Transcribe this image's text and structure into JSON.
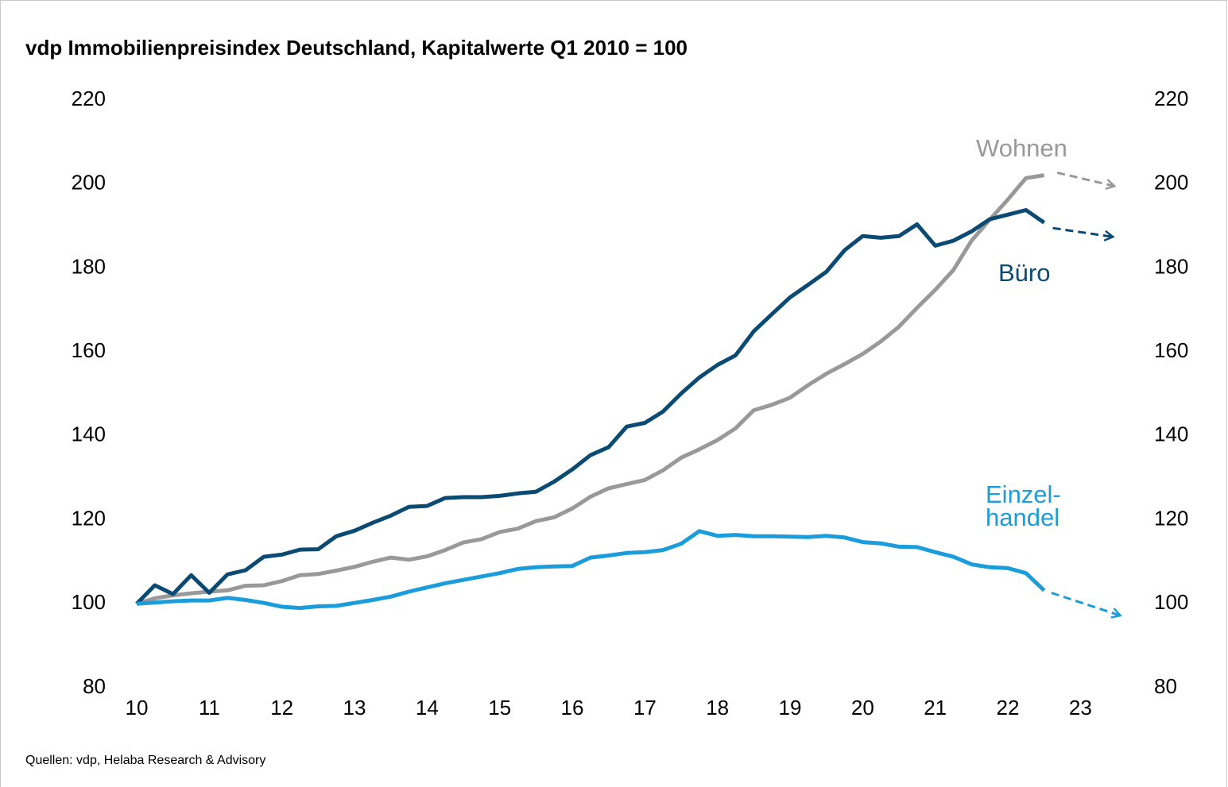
{
  "chart_data": {
    "type": "line",
    "title": "vdp Immobilienpreisindex Deutschland, Kapitalwerte Q1 2010 = 100",
    "source": "Quellen: vdp, Helaba Research & Advisory",
    "x": [
      10,
      10.25,
      10.5,
      10.75,
      11,
      11.25,
      11.5,
      11.75,
      12,
      12.25,
      12.5,
      12.75,
      13,
      13.25,
      13.5,
      13.75,
      14,
      14.25,
      14.5,
      14.75,
      15,
      15.25,
      15.5,
      15.75,
      16,
      16.25,
      16.5,
      16.75,
      17,
      17.25,
      17.5,
      17.75,
      18,
      18.25,
      18.5,
      18.75,
      19,
      19.25,
      19.5,
      19.75,
      20,
      20.25,
      20.5,
      20.75,
      21,
      21.25,
      21.5,
      21.75,
      22,
      22.25,
      22.5
    ],
    "xlim": [
      10,
      23.5
    ],
    "xticks": [
      10,
      11,
      12,
      13,
      14,
      15,
      16,
      17,
      18,
      19,
      20,
      21,
      22,
      23
    ],
    "ylim": [
      80,
      220
    ],
    "yticks": [
      80,
      100,
      120,
      140,
      160,
      180,
      200,
      220
    ],
    "y2lim": [
      80,
      220
    ],
    "y2ticks": [
      80,
      100,
      120,
      140,
      160,
      180,
      200,
      220
    ],
    "grid": false,
    "series": [
      {
        "name": "Wohnen",
        "color": "#999999",
        "values": [
          100,
          101.3,
          102,
          102.5,
          102.9,
          103.2,
          104.3,
          104.4,
          105.4,
          106.8,
          107.1,
          107.9,
          108.8,
          110,
          111,
          110.5,
          111.3,
          112.8,
          114.6,
          115.4,
          117.1,
          117.9,
          119.7,
          120.6,
          122.7,
          125.5,
          127.5,
          128.5,
          129.5,
          131.8,
          134.8,
          136.8,
          139,
          141.8,
          146.1,
          147.4,
          149.1,
          152.1,
          154.8,
          157.1,
          159.5,
          162.5,
          166,
          170.5,
          174.8,
          179.5,
          186.5,
          191.5,
          196.3,
          201.4,
          202.1
        ],
        "forecast": {
          "x": [
            22.68,
            23.47
          ],
          "values": [
            202.7,
            199.5
          ]
        }
      },
      {
        "name": "Büro",
        "color": "#0b4a72",
        "values": [
          100,
          104.4,
          102.3,
          106.8,
          102.6,
          107,
          108,
          111.2,
          111.7,
          112.9,
          113,
          116.1,
          117.4,
          119.3,
          121,
          123.1,
          123.3,
          125.2,
          125.4,
          125.4,
          125.7,
          126.3,
          126.7,
          129.1,
          132,
          135.4,
          137.3,
          142.2,
          143.1,
          145.8,
          150.1,
          153.9,
          156.9,
          159.2,
          164.9,
          169,
          173,
          176,
          179.1,
          184.2,
          187.6,
          187.2,
          187.6,
          190.4,
          185.3,
          186.5,
          188.7,
          191.6,
          192.7,
          193.8,
          190.8
        ],
        "forecast": {
          "x": [
            22.62,
            23.45
          ],
          "values": [
            189.5,
            187.4
          ]
        }
      },
      {
        "name": "Einzel-\nhandel",
        "color": "#1b9ddb",
        "values": [
          100,
          100.3,
          100.6,
          100.8,
          100.8,
          101.4,
          100.9,
          100.2,
          99.3,
          99,
          99.4,
          99.5,
          100.2,
          100.9,
          101.7,
          102.9,
          103.9,
          104.9,
          105.7,
          106.5,
          107.3,
          108.3,
          108.7,
          108.9,
          109,
          111,
          111.5,
          112.1,
          112.3,
          112.8,
          114.3,
          117.3,
          116.2,
          116.4,
          116.1,
          116.1,
          116,
          115.9,
          116.2,
          115.8,
          114.7,
          114.4,
          113.6,
          113.5,
          112.3,
          111.2,
          109.4,
          108.7,
          108.5,
          107.3,
          103.2
        ],
        "forecast": {
          "x": [
            22.6,
            23.55
          ],
          "values": [
            102.6,
            97.2
          ]
        }
      }
    ]
  }
}
